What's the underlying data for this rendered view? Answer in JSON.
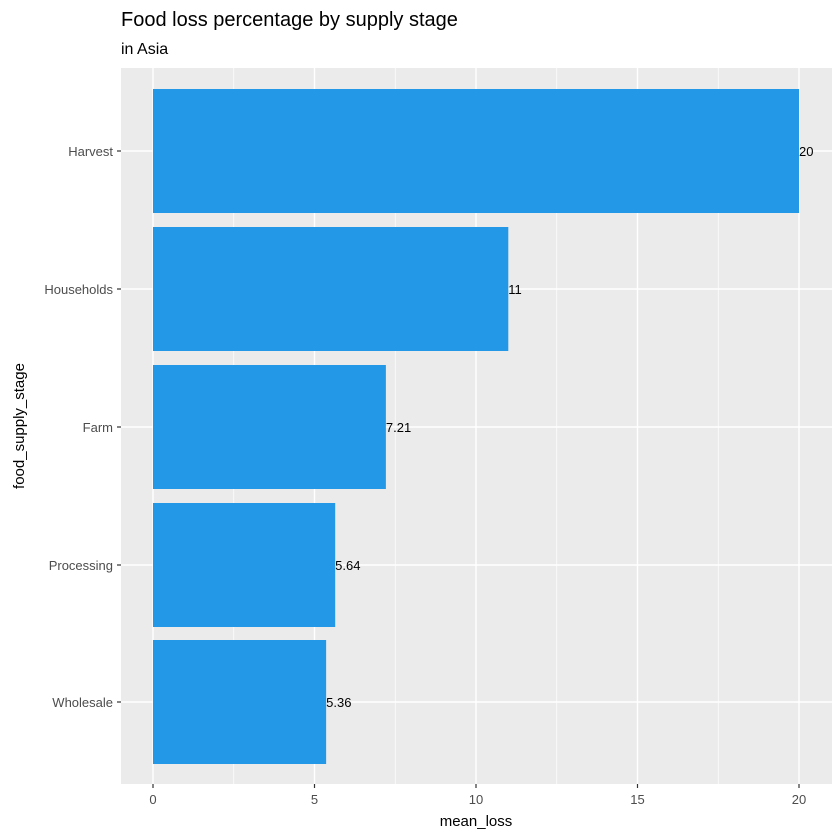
{
  "chart_data": {
    "type": "bar",
    "orientation": "horizontal",
    "title": "Food loss percentage by supply stage",
    "subtitle": "in Asia",
    "xlabel": "mean_loss",
    "ylabel": "food_supply_stage",
    "categories": [
      "Harvest",
      "Households",
      "Farm",
      "Processing",
      "Wholesale"
    ],
    "values": [
      20,
      11,
      7.21,
      5.64,
      5.36
    ],
    "data_labels": [
      "20",
      "11",
      "7.21",
      "5.64",
      "5.36"
    ],
    "xlim": [
      -1,
      21
    ],
    "x_ticks": [
      0,
      5,
      10,
      15,
      20
    ],
    "x_tick_labels": [
      "0",
      "5",
      "10",
      "15",
      "20"
    ],
    "grid": true,
    "legend": "none",
    "bar_color": "#2398E6",
    "panel_background": "#EBEBEB",
    "grid_color": "#FFFFFF"
  }
}
